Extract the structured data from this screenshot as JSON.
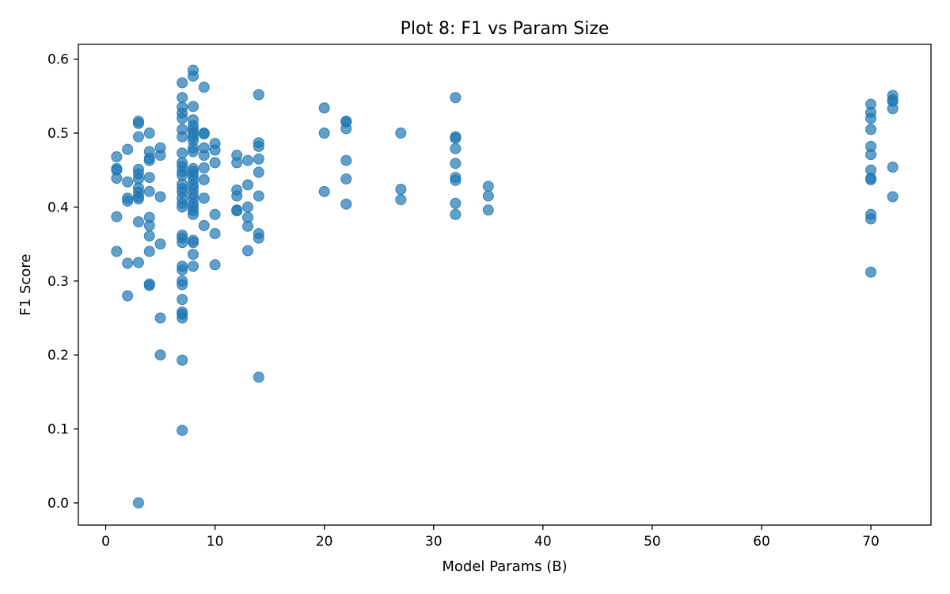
{
  "chart_data": {
    "type": "scatter",
    "title": "Plot 8: F1 vs Param Size",
    "xlabel": "Model Params (B)",
    "ylabel": "F1 Score",
    "xlim": [
      -2.5,
      75.5
    ],
    "ylim": [
      -0.03,
      0.62
    ],
    "xticks": [
      0,
      10,
      20,
      30,
      40,
      50,
      60,
      70
    ],
    "yticks": [
      0.0,
      0.1,
      0.2,
      0.3,
      0.4,
      0.5,
      0.6
    ],
    "xtick_labels": [
      "0",
      "10",
      "20",
      "30",
      "40",
      "50",
      "60",
      "70"
    ],
    "ytick_labels": [
      "0.0",
      "0.1",
      "0.2",
      "0.3",
      "0.4",
      "0.5",
      "0.6"
    ],
    "grid": false,
    "marker_color": "#1f77b4",
    "marker_alpha": 0.7,
    "points": [
      [
        1,
        0.468
      ],
      [
        1,
        0.452
      ],
      [
        1,
        0.45
      ],
      [
        1,
        0.439
      ],
      [
        1,
        0.387
      ],
      [
        1,
        0.34
      ],
      [
        2,
        0.478
      ],
      [
        2,
        0.434
      ],
      [
        2,
        0.412
      ],
      [
        2,
        0.408
      ],
      [
        2,
        0.324
      ],
      [
        2,
        0.28
      ],
      [
        3,
        0.516
      ],
      [
        3,
        0.513
      ],
      [
        3,
        0.495
      ],
      [
        3,
        0.451
      ],
      [
        3,
        0.445
      ],
      [
        3,
        0.438
      ],
      [
        3,
        0.426
      ],
      [
        3,
        0.42
      ],
      [
        3,
        0.414
      ],
      [
        3,
        0.411
      ],
      [
        3,
        0.38
      ],
      [
        3,
        0.325
      ],
      [
        3,
        0.0
      ],
      [
        4,
        0.5
      ],
      [
        4,
        0.475
      ],
      [
        4,
        0.466
      ],
      [
        4,
        0.463
      ],
      [
        4,
        0.44
      ],
      [
        4,
        0.421
      ],
      [
        4,
        0.386
      ],
      [
        4,
        0.375
      ],
      [
        4,
        0.361
      ],
      [
        4,
        0.34
      ],
      [
        4,
        0.296
      ],
      [
        4,
        0.294
      ],
      [
        5,
        0.48
      ],
      [
        5,
        0.47
      ],
      [
        5,
        0.414
      ],
      [
        5,
        0.35
      ],
      [
        5,
        0.25
      ],
      [
        5,
        0.2
      ],
      [
        7,
        0.568
      ],
      [
        7,
        0.548
      ],
      [
        7,
        0.535
      ],
      [
        7,
        0.527
      ],
      [
        7,
        0.52
      ],
      [
        7,
        0.505
      ],
      [
        7,
        0.495
      ],
      [
        7,
        0.473
      ],
      [
        7,
        0.46
      ],
      [
        7,
        0.455
      ],
      [
        7,
        0.448
      ],
      [
        7,
        0.443
      ],
      [
        7,
        0.431
      ],
      [
        7,
        0.425
      ],
      [
        7,
        0.42
      ],
      [
        7,
        0.412
      ],
      [
        7,
        0.405
      ],
      [
        7,
        0.4
      ],
      [
        7,
        0.362
      ],
      [
        7,
        0.358
      ],
      [
        7,
        0.352
      ],
      [
        7,
        0.32
      ],
      [
        7,
        0.315
      ],
      [
        7,
        0.3
      ],
      [
        7,
        0.295
      ],
      [
        7,
        0.275
      ],
      [
        7,
        0.258
      ],
      [
        7,
        0.255
      ],
      [
        7,
        0.25
      ],
      [
        7,
        0.193
      ],
      [
        7,
        0.098
      ],
      [
        8,
        0.585
      ],
      [
        8,
        0.577
      ],
      [
        8,
        0.536
      ],
      [
        8,
        0.518
      ],
      [
        8,
        0.51
      ],
      [
        8,
        0.505
      ],
      [
        8,
        0.5
      ],
      [
        8,
        0.495
      ],
      [
        8,
        0.49
      ],
      [
        8,
        0.48
      ],
      [
        8,
        0.475
      ],
      [
        8,
        0.452
      ],
      [
        8,
        0.448
      ],
      [
        8,
        0.443
      ],
      [
        8,
        0.437
      ],
      [
        8,
        0.43
      ],
      [
        8,
        0.425
      ],
      [
        8,
        0.418
      ],
      [
        8,
        0.412
      ],
      [
        8,
        0.405
      ],
      [
        8,
        0.4
      ],
      [
        8,
        0.395
      ],
      [
        8,
        0.39
      ],
      [
        8,
        0.355
      ],
      [
        8,
        0.352
      ],
      [
        8,
        0.336
      ],
      [
        8,
        0.32
      ],
      [
        9,
        0.562
      ],
      [
        9,
        0.5
      ],
      [
        9,
        0.499
      ],
      [
        9,
        0.48
      ],
      [
        9,
        0.47
      ],
      [
        9,
        0.453
      ],
      [
        9,
        0.437
      ],
      [
        9,
        0.412
      ],
      [
        9,
        0.375
      ],
      [
        10,
        0.486
      ],
      [
        10,
        0.477
      ],
      [
        10,
        0.46
      ],
      [
        10,
        0.39
      ],
      [
        10,
        0.364
      ],
      [
        10,
        0.322
      ],
      [
        12,
        0.47
      ],
      [
        12,
        0.46
      ],
      [
        12,
        0.423
      ],
      [
        12,
        0.415
      ],
      [
        12,
        0.396
      ],
      [
        12,
        0.395
      ],
      [
        13,
        0.463
      ],
      [
        13,
        0.43
      ],
      [
        13,
        0.4
      ],
      [
        13,
        0.386
      ],
      [
        13,
        0.374
      ],
      [
        13,
        0.341
      ],
      [
        14,
        0.552
      ],
      [
        14,
        0.487
      ],
      [
        14,
        0.482
      ],
      [
        14,
        0.465
      ],
      [
        14,
        0.447
      ],
      [
        14,
        0.415
      ],
      [
        14,
        0.364
      ],
      [
        14,
        0.358
      ],
      [
        14,
        0.17
      ],
      [
        20,
        0.534
      ],
      [
        20,
        0.5
      ],
      [
        20,
        0.421
      ],
      [
        22,
        0.516
      ],
      [
        22,
        0.515
      ],
      [
        22,
        0.506
      ],
      [
        22,
        0.463
      ],
      [
        22,
        0.438
      ],
      [
        22,
        0.404
      ],
      [
        27,
        0.5
      ],
      [
        27,
        0.424
      ],
      [
        27,
        0.41
      ],
      [
        32,
        0.548
      ],
      [
        32,
        0.495
      ],
      [
        32,
        0.493
      ],
      [
        32,
        0.479
      ],
      [
        32,
        0.459
      ],
      [
        32,
        0.44
      ],
      [
        32,
        0.436
      ],
      [
        32,
        0.405
      ],
      [
        32,
        0.39
      ],
      [
        35,
        0.428
      ],
      [
        35,
        0.415
      ],
      [
        35,
        0.396
      ],
      [
        70,
        0.539
      ],
      [
        70,
        0.528
      ],
      [
        70,
        0.52
      ],
      [
        70,
        0.505
      ],
      [
        70,
        0.482
      ],
      [
        70,
        0.471
      ],
      [
        70,
        0.45
      ],
      [
        70,
        0.439
      ],
      [
        70,
        0.437
      ],
      [
        70,
        0.39
      ],
      [
        70,
        0.384
      ],
      [
        70,
        0.312
      ],
      [
        72,
        0.551
      ],
      [
        72,
        0.545
      ],
      [
        72,
        0.543
      ],
      [
        72,
        0.533
      ],
      [
        72,
        0.454
      ],
      [
        72,
        0.414
      ]
    ]
  }
}
